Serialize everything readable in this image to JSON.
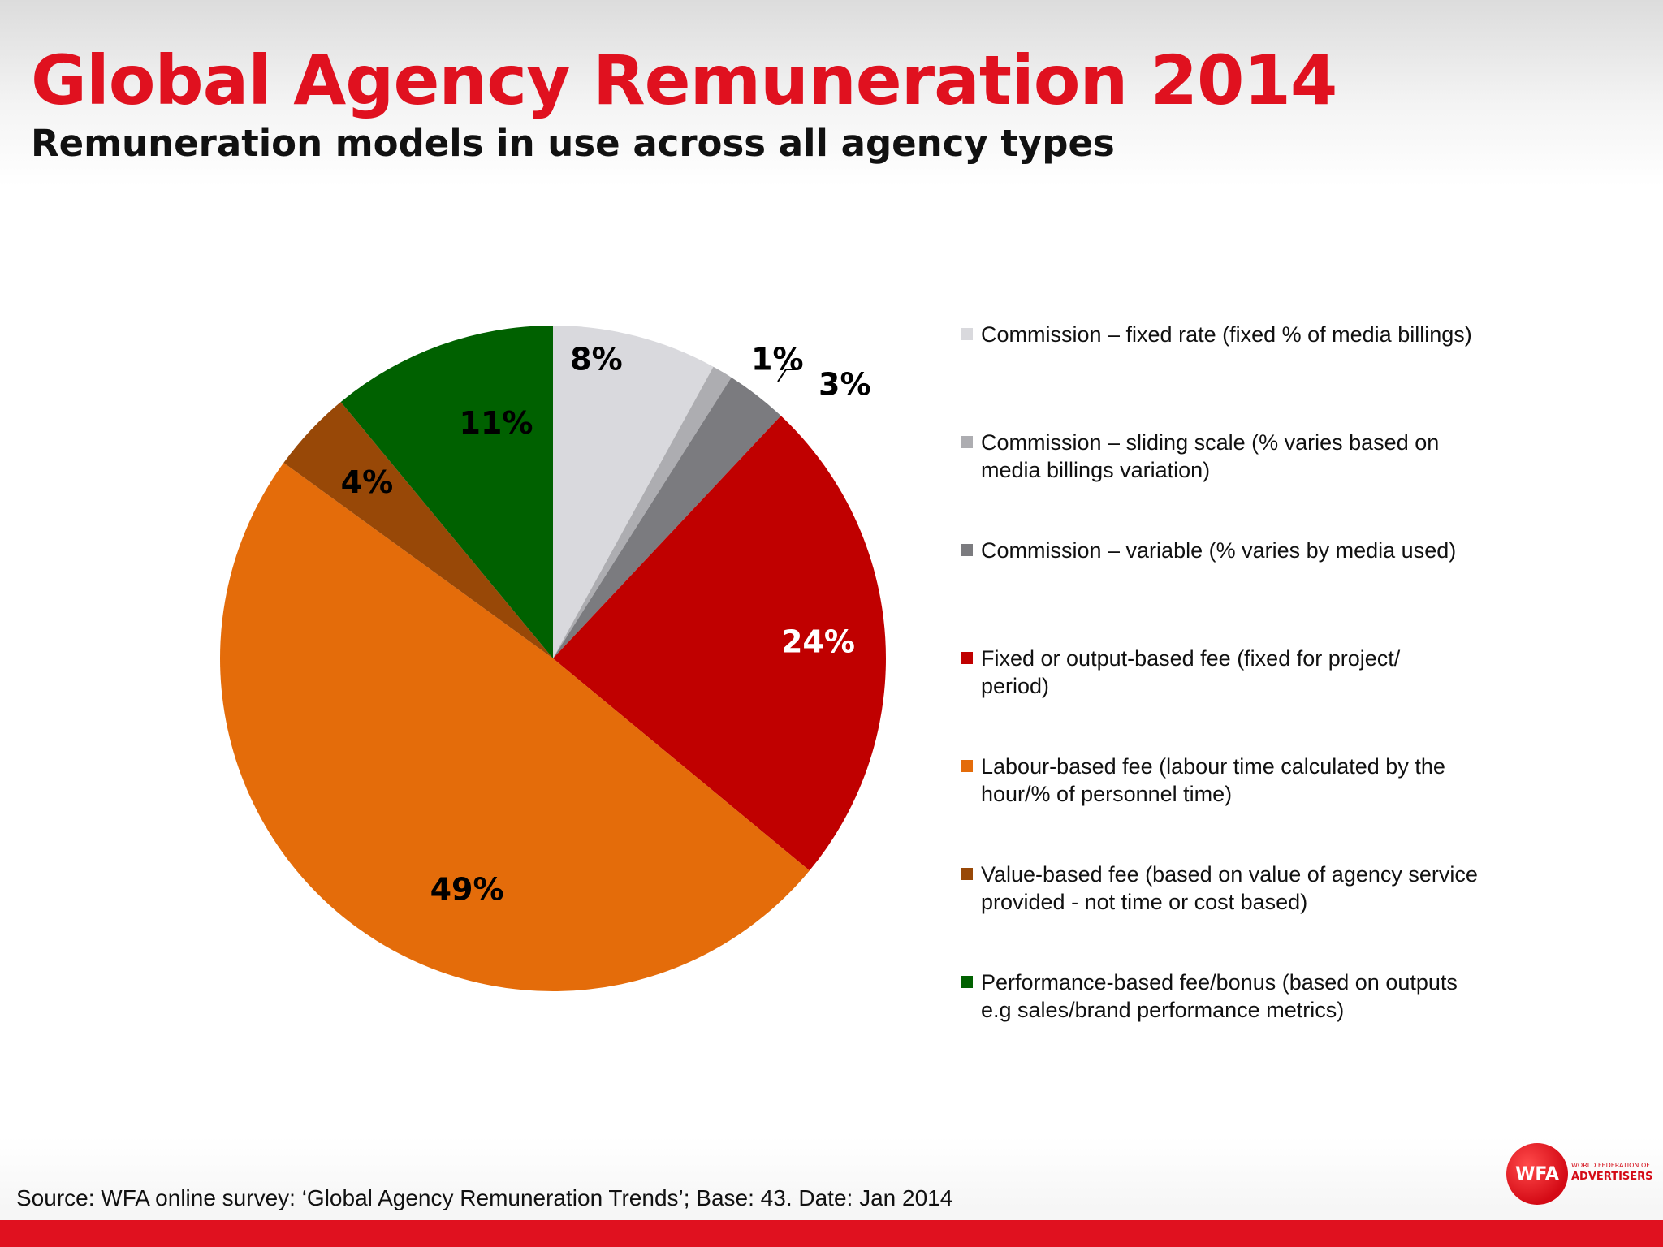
{
  "header": {
    "title": "Global Agency Remuneration 2014",
    "subtitle": "Remuneration models in use across all agency types"
  },
  "chart_data": {
    "type": "pie",
    "title": "Global Agency Remuneration 2014",
    "subtitle": "Remuneration models in use across all agency types",
    "start_angle_deg": 0,
    "direction": "clockwise",
    "legend_position": "right",
    "slices": [
      {
        "label": "Commission – fixed rate (fixed % of media billings)",
        "value": 8,
        "display": "8%",
        "color": "#d9d9dd",
        "label_color": "#000000"
      },
      {
        "label": "Commission – sliding scale (% varies based on media billings variation)",
        "value": 1,
        "display": "1%",
        "color": "#adadb1",
        "label_color": "#000000"
      },
      {
        "label": "Commission – variable (% varies by media used)",
        "value": 3,
        "display": "3%",
        "color": "#7b7b7f",
        "label_color": "#000000"
      },
      {
        "label": "Fixed or output-based fee (fixed for project/ period)",
        "value": 24,
        "display": "24%",
        "color": "#c00000",
        "label_color": "#ffffff"
      },
      {
        "label": "Labour-based fee (labour time calculated by the hour/% of personnel time)",
        "value": 49,
        "display": "49%",
        "color": "#e46c0a",
        "label_color": "#000000"
      },
      {
        "label": "Value-based fee (based on value of agency service provided - not time or cost based)",
        "value": 4,
        "display": "4%",
        "color": "#984807",
        "label_color": "#000000"
      },
      {
        "label": "Performance-based fee/bonus (based on outputs e.g sales/brand performance metrics)",
        "value": 11,
        "display": "11%",
        "color": "#006100",
        "label_color": "#000000"
      }
    ],
    "legend_lines": [
      [
        "Commission – fixed rate (fixed % of media billings)"
      ],
      [
        "Commission – sliding scale (% varies based on",
        "media billings variation)"
      ],
      [
        "Commission – variable (% varies by media used)"
      ],
      [
        "Fixed or output-based fee (fixed for project/",
        "period)"
      ],
      [
        "Labour-based fee (labour time calculated by the",
        "hour/% of personnel time)"
      ],
      [
        "Value-based fee (based on value of agency service",
        "provided - not time or cost based)"
      ],
      [
        "Performance-based fee/bonus (based on outputs",
        "e.g sales/brand performance metrics)"
      ]
    ]
  },
  "footer": {
    "source": "Source: WFA online survey: ‘Global Agency Remuneration Trends’; Base: 43. Date: Jan 2014"
  },
  "logo": {
    "mark": "WFA",
    "line1": "WORLD FEDERATION OF",
    "line2": "ADVERTISERS"
  },
  "colors": {
    "brand_red": "#e0111f",
    "footer_bar": "#e0111f"
  }
}
